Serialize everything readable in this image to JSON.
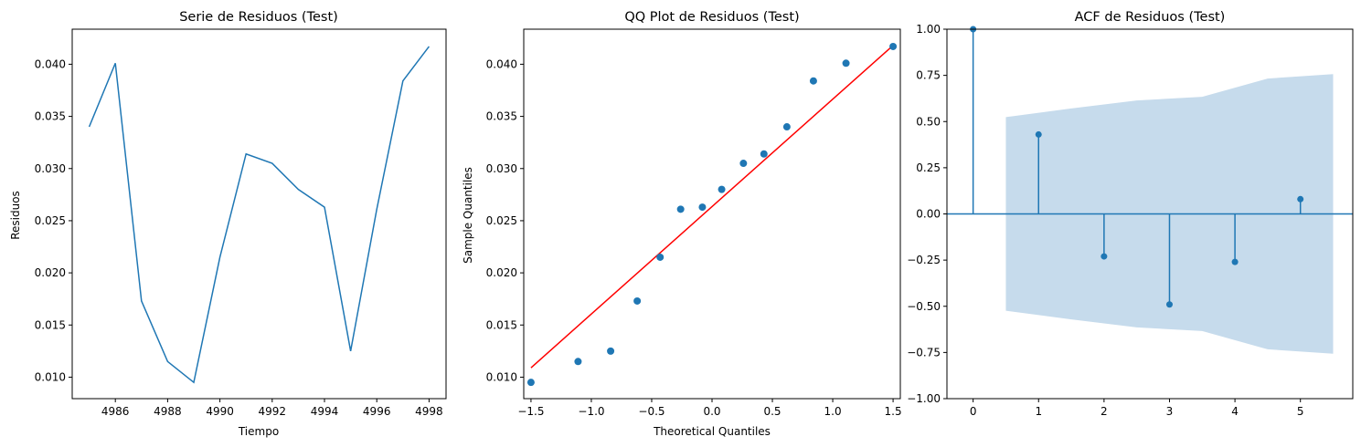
{
  "chart_data": [
    {
      "type": "line",
      "title": "Serie de Residuos (Test)",
      "xlabel": "Tiempo",
      "ylabel": "Residuos",
      "xlim": [
        4984.35,
        4998.65
      ],
      "ylim": [
        0.00794,
        0.04336
      ],
      "xticks": [
        4986,
        4988,
        4990,
        4992,
        4994,
        4996,
        4998
      ],
      "yticks": [
        0.01,
        0.015,
        0.02,
        0.025,
        0.03,
        0.035,
        0.04
      ],
      "color": "#1f77b4",
      "series": [
        {
          "x": [
            4985,
            4986,
            4987,
            4988,
            4989,
            4990,
            4991,
            4992,
            4993,
            4994,
            4995,
            4996,
            4997,
            4998
          ],
          "y": [
            0.034,
            0.0401,
            0.0173,
            0.0115,
            0.0095,
            0.0215,
            0.0314,
            0.0305,
            0.028,
            0.0263,
            0.0125,
            0.0261,
            0.0384,
            0.0417
          ]
        }
      ]
    },
    {
      "type": "scatter",
      "title": "QQ Plot de Residuos (Test)",
      "xlabel": "Theoretical Quantiles",
      "ylabel": "Sample Quantiles",
      "xlim": [
        -1.56,
        1.56
      ],
      "ylim": [
        0.00794,
        0.04336
      ],
      "xticks": [
        -1.5,
        -1.0,
        -0.5,
        0.0,
        0.5,
        1.0,
        1.5
      ],
      "yticks": [
        0.01,
        0.015,
        0.02,
        0.025,
        0.03,
        0.035,
        0.04
      ],
      "point_color": "#1f77b4",
      "line_color": "#ff0000",
      "points": {
        "x": [
          -1.5,
          -1.11,
          -0.84,
          -0.62,
          -0.43,
          -0.26,
          -0.08,
          0.08,
          0.26,
          0.43,
          0.62,
          0.84,
          1.11,
          1.5
        ],
        "y": [
          0.0095,
          0.0115,
          0.0125,
          0.0173,
          0.0215,
          0.0261,
          0.0263,
          0.028,
          0.0305,
          0.0314,
          0.034,
          0.0384,
          0.0401,
          0.0417
        ]
      },
      "reference_line": {
        "x": [
          -1.5,
          1.5
        ],
        "y": [
          0.0109,
          0.0418
        ]
      }
    },
    {
      "type": "stem",
      "title": "ACF de Residuos (Test)",
      "xlabel": "",
      "ylabel": "",
      "xlim": [
        -0.4,
        5.8
      ],
      "ylim": [
        -1.0,
        1.0
      ],
      "xticks": [
        0,
        1,
        2,
        3,
        4,
        5
      ],
      "yticks": [
        -1.0,
        -0.75,
        -0.5,
        -0.25,
        0.0,
        0.25,
        0.5,
        0.75,
        1.0
      ],
      "color": "#1f77b4",
      "band_color": "#c6dbec",
      "lags": [
        0,
        1,
        2,
        3,
        4,
        5
      ],
      "values": [
        1.0,
        0.43,
        -0.23,
        -0.49,
        -0.26,
        0.08
      ],
      "confidence_band": {
        "x": [
          0.5,
          1.5,
          2.5,
          3.5,
          4.5,
          5.5
        ],
        "upper": [
          0.524,
          0.571,
          0.614,
          0.634,
          0.733,
          0.757
        ],
        "lower": [
          -0.524,
          -0.571,
          -0.614,
          -0.634,
          -0.733,
          -0.757
        ]
      }
    }
  ]
}
